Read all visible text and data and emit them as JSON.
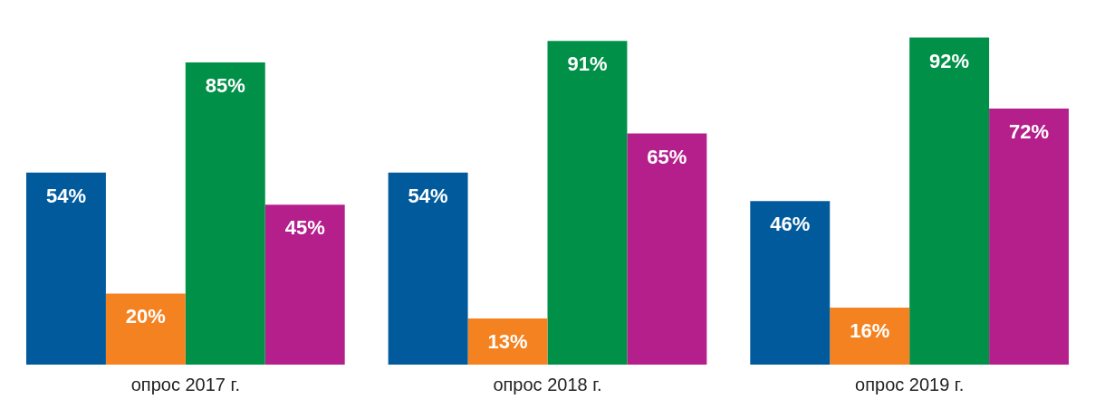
{
  "chart_data": {
    "type": "bar",
    "categories": [
      "опрос 2017 г.",
      "опрос 2018 г.",
      "опрос 2019 г."
    ],
    "series": [
      {
        "color": "#005a9c",
        "values": [
          54,
          54,
          46
        ],
        "value_labels": [
          "54%",
          "54%",
          "46%"
        ]
      },
      {
        "color": "#f58220",
        "values": [
          20,
          13,
          16
        ],
        "value_labels": [
          "20%",
          "13%",
          "16%"
        ]
      },
      {
        "color": "#009048",
        "values": [
          85,
          91,
          92
        ],
        "value_labels": [
          "85%",
          "91%",
          "92%"
        ]
      },
      {
        "color": "#b51f8c",
        "values": [
          45,
          65,
          72
        ],
        "value_labels": [
          "45%",
          "65%",
          "72%"
        ]
      }
    ],
    "grid": false,
    "legend": false,
    "tick_labels": "x"
  }
}
